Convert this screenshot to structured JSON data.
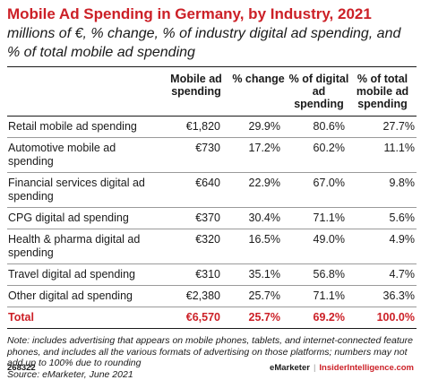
{
  "header": {
    "title": "Mobile Ad Spending in Germany, by Industry, 2021",
    "subtitle": "millions of €, % change, % of industry digital ad spending, and % of total mobile ad spending"
  },
  "chart_data": {
    "type": "table",
    "columns": [
      "",
      "Mobile ad spending",
      "% change",
      "% of digital ad spending",
      "% of total mobile ad spending"
    ],
    "rows": [
      [
        "Retail mobile ad spending",
        "€1,820",
        "29.9%",
        "80.6%",
        "27.7%"
      ],
      [
        "Automotive mobile ad spending",
        "€730",
        "17.2%",
        "60.2%",
        "11.1%"
      ],
      [
        "Financial services digital ad spending",
        "€640",
        "22.9%",
        "67.0%",
        "9.8%"
      ],
      [
        "CPG digital ad spending",
        "€370",
        "30.4%",
        "71.1%",
        "5.6%"
      ],
      [
        "Health & pharma digital ad spending",
        "€320",
        "16.5%",
        "49.0%",
        "4.9%"
      ],
      [
        "Travel digital ad spending",
        "€310",
        "35.1%",
        "56.8%",
        "4.7%"
      ],
      [
        "Other digital ad spending",
        "€2,380",
        "25.7%",
        "71.1%",
        "36.3%"
      ],
      [
        "Total",
        "€6,570",
        "25.7%",
        "69.2%",
        "100.0%"
      ]
    ]
  },
  "note": {
    "text": "Note: includes advertising that appears on mobile phones, tablets, and internet-connected feature phones, and includes all the various formats of advertising on those platforms; numbers may not add up to 100% due to rounding",
    "source": "Source: eMarketer, June 2021"
  },
  "footer": {
    "id": "268322",
    "brand": "eMarketer",
    "separator": "|",
    "site": "InsiderIntelligence.com"
  },
  "colors": {
    "accent": "#cc2027",
    "text": "#1a1a1a"
  }
}
